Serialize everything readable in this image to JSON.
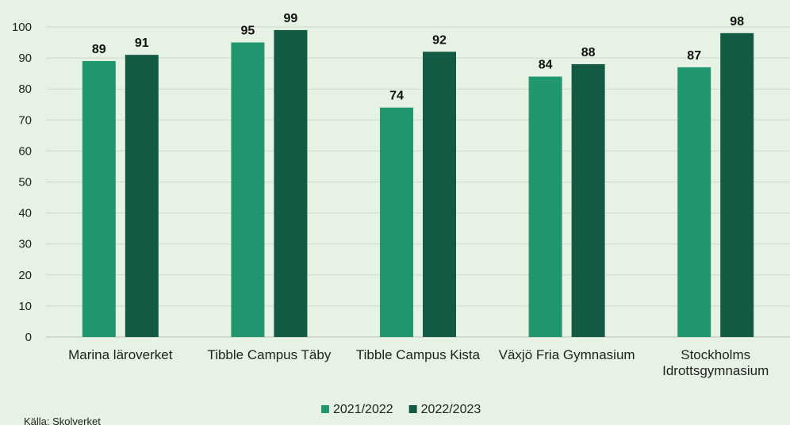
{
  "chart_data": {
    "type": "bar",
    "categories": [
      [
        "Marina läroverket"
      ],
      [
        "Tibble Campus Täby"
      ],
      [
        "Tibble Campus Kista"
      ],
      [
        "Växjö Fria Gymnasium"
      ],
      [
        "Stockholms",
        "Idrottsgymnasium"
      ]
    ],
    "series": [
      {
        "name": "2021/2022",
        "values": [
          89,
          95,
          74,
          84,
          87
        ],
        "color": "#20976e"
      },
      {
        "name": "2022/2023",
        "values": [
          91,
          99,
          92,
          88,
          98
        ],
        "color": "#135a45"
      }
    ],
    "ylim": [
      0,
      100
    ],
    "yticks": [
      0,
      10,
      20,
      30,
      40,
      50,
      60,
      70,
      80,
      90,
      100
    ],
    "grid": true,
    "legend": "bottom-center",
    "source": "Källa: Skolverket"
  }
}
